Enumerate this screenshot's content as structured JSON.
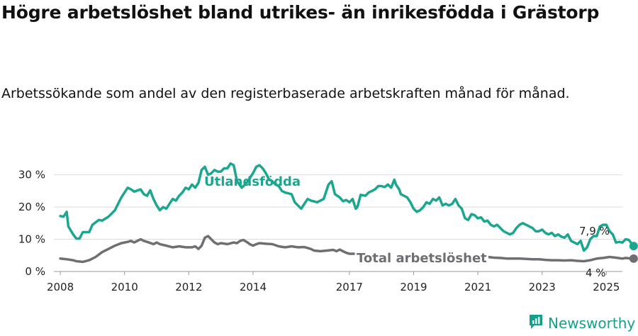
{
  "title": "Högre arbetslöshet bland utrikes- än inrikesfödda i Grästorp",
  "subtitle": "Arbetssökande som andel av den registerbaserade arbetskraften månad för månad.",
  "brand": {
    "name": "Newsworthy",
    "logo_icon": "newsworthy-logo-icon"
  },
  "colors": {
    "foreign": "#1aa68f",
    "total": "#6f6f73",
    "grid": "#dcdcdc",
    "text": "#222222"
  },
  "chart_data": {
    "type": "line",
    "xlim": [
      2007.8,
      2025.5
    ],
    "ylim": [
      0,
      33
    ],
    "yticks": [
      0,
      10,
      20,
      30
    ],
    "ytick_labels": [
      "0 %",
      "10 %",
      "20 %",
      "30 %"
    ],
    "xticks": [
      2008,
      2010,
      2012,
      2014,
      2017,
      2019,
      2021,
      2023,
      2025
    ],
    "xtick_labels": [
      "2008",
      "2010",
      "2012",
      "2014",
      "2017",
      "2019",
      "2021",
      "2023",
      "2025"
    ],
    "grid": true,
    "series": [
      {
        "name": "Utlandsfödda",
        "color": "#1aa68f",
        "end_label": "7,9 %",
        "points": [
          [
            2008.0,
            17.2
          ],
          [
            2008.1,
            17.0
          ],
          [
            2008.2,
            18.5
          ],
          [
            2008.25,
            14.0
          ],
          [
            2008.4,
            11.5
          ],
          [
            2008.5,
            10.2
          ],
          [
            2008.6,
            10.2
          ],
          [
            2008.7,
            12.2
          ],
          [
            2008.9,
            12.2
          ],
          [
            2009.0,
            14.5
          ],
          [
            2009.2,
            16.0
          ],
          [
            2009.3,
            15.8
          ],
          [
            2009.5,
            17.0
          ],
          [
            2009.7,
            19.0
          ],
          [
            2009.8,
            21.0
          ],
          [
            2009.9,
            23.0
          ],
          [
            2010.0,
            24.5
          ],
          [
            2010.1,
            26.0
          ],
          [
            2010.2,
            25.5
          ],
          [
            2010.3,
            24.8
          ],
          [
            2010.5,
            25.5
          ],
          [
            2010.6,
            24.0
          ],
          [
            2010.7,
            23.5
          ],
          [
            2010.8,
            25.2
          ],
          [
            2010.9,
            22.5
          ],
          [
            2011.0,
            20.5
          ],
          [
            2011.1,
            19.0
          ],
          [
            2011.2,
            20.0
          ],
          [
            2011.3,
            19.5
          ],
          [
            2011.5,
            22.5
          ],
          [
            2011.6,
            22.0
          ],
          [
            2011.7,
            23.5
          ],
          [
            2011.8,
            24.5
          ],
          [
            2011.9,
            26.0
          ],
          [
            2012.0,
            25.5
          ],
          [
            2012.1,
            27.0
          ],
          [
            2012.2,
            26.0
          ],
          [
            2012.3,
            27.5
          ],
          [
            2012.4,
            31.5
          ],
          [
            2012.5,
            32.5
          ],
          [
            2012.6,
            30.0
          ],
          [
            2012.7,
            30.5
          ],
          [
            2012.8,
            31.5
          ],
          [
            2012.9,
            31.0
          ],
          [
            2013.0,
            31.0
          ],
          [
            2013.1,
            32.0
          ],
          [
            2013.2,
            32.0
          ],
          [
            2013.3,
            33.5
          ],
          [
            2013.4,
            33.0
          ],
          [
            2013.5,
            28.0
          ],
          [
            2013.65,
            26.0
          ],
          [
            2013.8,
            27.5
          ],
          [
            2014.0,
            30.5
          ],
          [
            2014.1,
            32.5
          ],
          [
            2014.2,
            33.0
          ],
          [
            2014.3,
            32.0
          ],
          [
            2014.4,
            30.5
          ],
          [
            2014.5,
            28.5
          ],
          [
            2014.6,
            28.0
          ],
          [
            2014.7,
            27.0
          ],
          [
            2014.8,
            26.5
          ],
          [
            2014.9,
            25.0
          ],
          [
            2015.0,
            24.5
          ],
          [
            2015.2,
            24.0
          ],
          [
            2015.3,
            21.5
          ],
          [
            2015.5,
            19.5
          ],
          [
            2015.6,
            21.0
          ],
          [
            2015.7,
            22.5
          ],
          [
            2015.8,
            22.0
          ],
          [
            2016.0,
            21.5
          ],
          [
            2016.2,
            22.5
          ],
          [
            2016.35,
            27.0
          ],
          [
            2016.45,
            28.0
          ],
          [
            2016.55,
            24.0
          ],
          [
            2016.7,
            23.0
          ],
          [
            2016.8,
            21.8
          ],
          [
            2016.9,
            22.2
          ],
          [
            2017.0,
            21.5
          ],
          [
            2017.1,
            22.5
          ],
          [
            2017.2,
            19.5
          ],
          [
            2017.25,
            20.0
          ],
          [
            2017.35,
            23.8
          ],
          [
            2017.5,
            23.5
          ],
          [
            2017.6,
            24.5
          ],
          [
            2017.7,
            25.0
          ],
          [
            2017.8,
            25.5
          ],
          [
            2017.9,
            26.5
          ],
          [
            2018.0,
            26.5
          ],
          [
            2018.1,
            26.2
          ],
          [
            2018.2,
            27.0
          ],
          [
            2018.3,
            26.0
          ],
          [
            2018.4,
            28.5
          ],
          [
            2018.45,
            27.0
          ],
          [
            2018.55,
            25.5
          ],
          [
            2018.6,
            24.0
          ],
          [
            2018.8,
            23.0
          ],
          [
            2018.9,
            21.5
          ],
          [
            2019.0,
            19.5
          ],
          [
            2019.1,
            18.5
          ],
          [
            2019.2,
            19.0
          ],
          [
            2019.3,
            20.0
          ],
          [
            2019.4,
            21.5
          ],
          [
            2019.5,
            21.0
          ],
          [
            2019.6,
            22.5
          ],
          [
            2019.7,
            22.0
          ],
          [
            2019.8,
            23.0
          ],
          [
            2019.9,
            20.5
          ],
          [
            2020.0,
            21.0
          ],
          [
            2020.1,
            20.5
          ],
          [
            2020.2,
            21.0
          ],
          [
            2020.3,
            22.5
          ],
          [
            2020.4,
            20.5
          ],
          [
            2020.5,
            19.5
          ],
          [
            2020.6,
            16.5
          ],
          [
            2020.7,
            16.0
          ],
          [
            2020.8,
            17.8
          ],
          [
            2020.9,
            17.5
          ],
          [
            2021.0,
            16.5
          ],
          [
            2021.1,
            16.8
          ],
          [
            2021.2,
            15.5
          ],
          [
            2021.3,
            15.8
          ],
          [
            2021.4,
            14.5
          ],
          [
            2021.5,
            14.0
          ],
          [
            2021.6,
            14.5
          ],
          [
            2021.7,
            13.5
          ],
          [
            2021.8,
            12.5
          ],
          [
            2021.9,
            12.0
          ],
          [
            2022.0,
            11.5
          ],
          [
            2022.1,
            12.0
          ],
          [
            2022.2,
            13.5
          ],
          [
            2022.3,
            14.5
          ],
          [
            2022.4,
            15.0
          ],
          [
            2022.5,
            14.5
          ],
          [
            2022.6,
            14.0
          ],
          [
            2022.7,
            13.5
          ],
          [
            2022.8,
            12.5
          ],
          [
            2022.9,
            12.5
          ],
          [
            2023.0,
            13.0
          ],
          [
            2023.1,
            12.0
          ],
          [
            2023.2,
            11.5
          ],
          [
            2023.3,
            12.0
          ],
          [
            2023.4,
            11.0
          ],
          [
            2023.5,
            11.5
          ],
          [
            2023.6,
            10.8
          ],
          [
            2023.7,
            10.5
          ],
          [
            2023.8,
            11.5
          ],
          [
            2023.9,
            9.5
          ],
          [
            2024.0,
            9.0
          ],
          [
            2024.1,
            8.5
          ],
          [
            2024.2,
            9.5
          ],
          [
            2024.3,
            6.5
          ],
          [
            2024.4,
            7.5
          ],
          [
            2024.5,
            10.0
          ],
          [
            2024.6,
            11.0
          ],
          [
            2024.7,
            11.0
          ],
          [
            2024.8,
            14.0
          ],
          [
            2024.9,
            14.5
          ],
          [
            2025.0,
            14.5
          ],
          [
            2025.1,
            12.5
          ],
          [
            2025.2,
            11.5
          ],
          [
            2025.3,
            9.0
          ],
          [
            2025.4,
            9.2
          ],
          [
            2025.5,
            9.0
          ],
          [
            2025.6,
            10.0
          ],
          [
            2025.7,
            9.8
          ],
          [
            2025.8,
            8.5
          ],
          [
            2025.85,
            7.9
          ]
        ]
      },
      {
        "name": "Total arbetslöshet",
        "color": "#6f6f73",
        "end_label": "4 %",
        "points": [
          [
            2008.0,
            4.0
          ],
          [
            2008.2,
            3.8
          ],
          [
            2008.4,
            3.5
          ],
          [
            2008.5,
            3.2
          ],
          [
            2008.7,
            3.0
          ],
          [
            2008.9,
            3.5
          ],
          [
            2009.1,
            4.5
          ],
          [
            2009.3,
            6.0
          ],
          [
            2009.5,
            7.0
          ],
          [
            2009.7,
            8.0
          ],
          [
            2009.9,
            8.8
          ],
          [
            2010.0,
            9.0
          ],
          [
            2010.1,
            9.2
          ],
          [
            2010.2,
            9.5
          ],
          [
            2010.3,
            9.0
          ],
          [
            2010.4,
            9.5
          ],
          [
            2010.5,
            10.0
          ],
          [
            2010.6,
            9.5
          ],
          [
            2010.7,
            9.2
          ],
          [
            2010.9,
            8.5
          ],
          [
            2011.0,
            9.0
          ],
          [
            2011.1,
            8.5
          ],
          [
            2011.3,
            8.0
          ],
          [
            2011.5,
            7.5
          ],
          [
            2011.7,
            7.8
          ],
          [
            2011.9,
            7.5
          ],
          [
            2012.1,
            7.5
          ],
          [
            2012.2,
            7.8
          ],
          [
            2012.3,
            7.0
          ],
          [
            2012.4,
            8.0
          ],
          [
            2012.5,
            10.5
          ],
          [
            2012.6,
            11.0
          ],
          [
            2012.7,
            10.0
          ],
          [
            2012.8,
            9.0
          ],
          [
            2012.9,
            8.5
          ],
          [
            2013.0,
            8.8
          ],
          [
            2013.2,
            8.5
          ],
          [
            2013.4,
            9.0
          ],
          [
            2013.5,
            8.8
          ],
          [
            2013.6,
            9.5
          ],
          [
            2013.7,
            9.8
          ],
          [
            2013.8,
            9.2
          ],
          [
            2013.9,
            8.5
          ],
          [
            2014.0,
            8.0
          ],
          [
            2014.1,
            8.5
          ],
          [
            2014.2,
            8.8
          ],
          [
            2014.4,
            8.6
          ],
          [
            2014.6,
            8.5
          ],
          [
            2014.8,
            7.8
          ],
          [
            2015.0,
            7.5
          ],
          [
            2015.2,
            7.8
          ],
          [
            2015.4,
            7.5
          ],
          [
            2015.6,
            7.6
          ],
          [
            2015.8,
            7.0
          ],
          [
            2015.9,
            6.5
          ],
          [
            2016.1,
            6.3
          ],
          [
            2016.3,
            6.5
          ],
          [
            2016.5,
            6.7
          ],
          [
            2016.6,
            6.3
          ],
          [
            2016.7,
            6.8
          ],
          [
            2016.8,
            6.3
          ],
          [
            2016.9,
            5.8
          ],
          [
            2017.0,
            5.5
          ],
          [
            2017.2,
            5.5
          ],
          [
            2017.3,
            5.3
          ],
          [
            2017.5,
            5.2
          ]
        ],
        "points2": [
          [
            2021.2,
            4.4
          ],
          [
            2021.3,
            4.5
          ],
          [
            2021.5,
            4.3
          ],
          [
            2021.7,
            4.2
          ],
          [
            2021.9,
            4.0
          ],
          [
            2022.1,
            4.0
          ],
          [
            2022.3,
            4.0
          ],
          [
            2022.5,
            3.9
          ],
          [
            2022.7,
            3.8
          ],
          [
            2022.9,
            3.8
          ],
          [
            2023.1,
            3.6
          ],
          [
            2023.3,
            3.5
          ],
          [
            2023.5,
            3.5
          ],
          [
            2023.7,
            3.4
          ],
          [
            2023.9,
            3.5
          ],
          [
            2024.1,
            3.3
          ],
          [
            2024.3,
            3.2
          ],
          [
            2024.5,
            3.5
          ],
          [
            2024.7,
            4.0
          ],
          [
            2024.9,
            4.2
          ],
          [
            2025.1,
            4.5
          ],
          [
            2025.3,
            4.3
          ],
          [
            2025.5,
            4.0
          ],
          [
            2025.6,
            4.2
          ],
          [
            2025.7,
            4.1
          ],
          [
            2025.85,
            4.0
          ]
        ]
      }
    ]
  }
}
